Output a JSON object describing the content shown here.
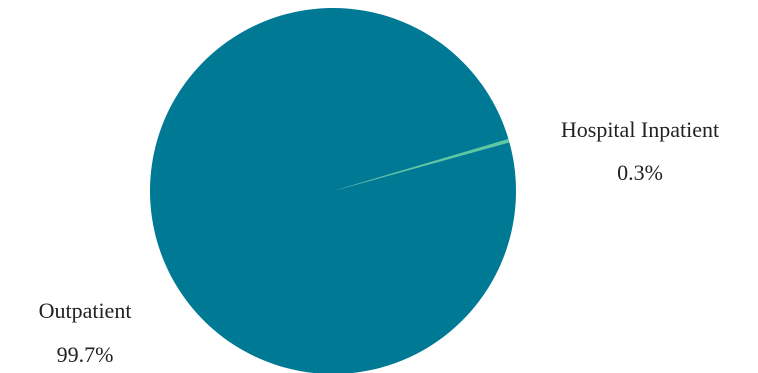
{
  "chart_data": {
    "type": "pie",
    "title": "",
    "slices": [
      {
        "name": "Outpatient",
        "value": 99.7,
        "label": "Outpatient",
        "percent_label": "99.7%",
        "color": "#007a94"
      },
      {
        "name": "Hospital Inpatient",
        "value": 0.3,
        "label": "Hospital Inpatient",
        "percent_label": "0.3%",
        "color": "#5cc8a0"
      }
    ],
    "legend": "none",
    "labels": "outside"
  }
}
